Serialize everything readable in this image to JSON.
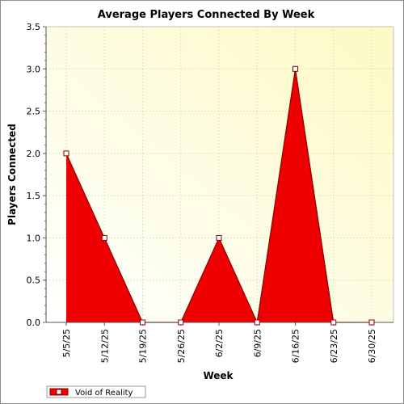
{
  "chart_data": {
    "type": "area",
    "title": "Average Players Connected By Week",
    "xlabel": "Week",
    "ylabel": "Players Connected",
    "categories": [
      "5/5/25",
      "5/12/25",
      "5/19/25",
      "5/26/25",
      "6/2/25",
      "6/9/25",
      "6/16/25",
      "6/23/25",
      "6/30/25"
    ],
    "series": [
      {
        "name": "Void of Reality",
        "values": [
          2.0,
          1.0,
          0.0,
          0.0,
          1.0,
          0.0,
          3.0,
          0.0,
          0.0
        ]
      }
    ],
    "ylim": [
      0,
      3.5
    ],
    "yticks": [
      "0.0",
      "0.5",
      "1.0",
      "1.5",
      "2.0",
      "2.5",
      "3.0",
      "3.5"
    ],
    "grid": true,
    "legend_position": "bottom-left",
    "colors": {
      "series_fill": "#ee0000",
      "series_line": "#8b0000",
      "plot_background_light": "#ffffee",
      "plot_background_dark": "#fdfac8",
      "grid": "#c8c8a0"
    }
  }
}
